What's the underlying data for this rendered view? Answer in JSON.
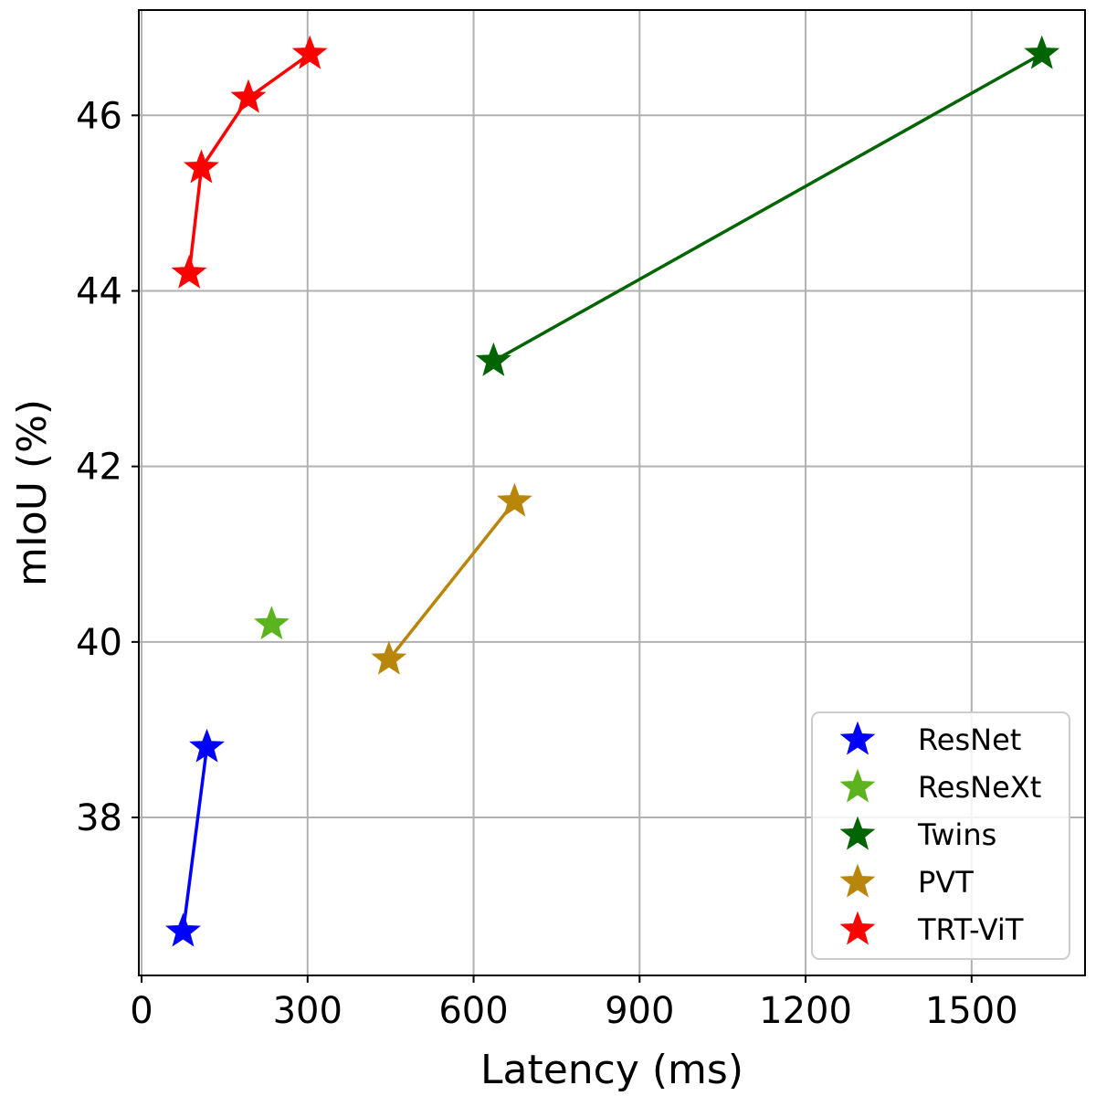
{
  "chart_data": {
    "type": "line",
    "title": "",
    "xlabel": "Latency (ms)",
    "ylabel": "mIoU (%)",
    "xlim": [
      -5,
      1705
    ],
    "ylim": [
      36.2,
      47.2
    ],
    "xticks": [
      0,
      300,
      600,
      900,
      1200,
      1500
    ],
    "yticks": [
      38,
      40,
      42,
      44,
      46
    ],
    "grid": true,
    "legend": "lower-right",
    "marker": "star",
    "series": [
      {
        "name": "ResNet",
        "color": "#0000ff",
        "x": [
          75,
          118
        ],
        "y": [
          36.7,
          38.8
        ]
      },
      {
        "name": "ResNeXt",
        "color": "#5bb41e",
        "x": [
          235
        ],
        "y": [
          40.2
        ]
      },
      {
        "name": "Twins",
        "color": "#006400",
        "x": [
          636,
          1627
        ],
        "y": [
          43.2,
          46.7
        ]
      },
      {
        "name": "PVT",
        "color": "#b8860b",
        "x": [
          447,
          674
        ],
        "y": [
          39.8,
          41.6
        ]
      },
      {
        "name": "TRT-ViT",
        "color": "#ff0000",
        "x": [
          86,
          108,
          193,
          304
        ],
        "y": [
          44.2,
          45.4,
          46.2,
          46.7
        ]
      }
    ]
  }
}
